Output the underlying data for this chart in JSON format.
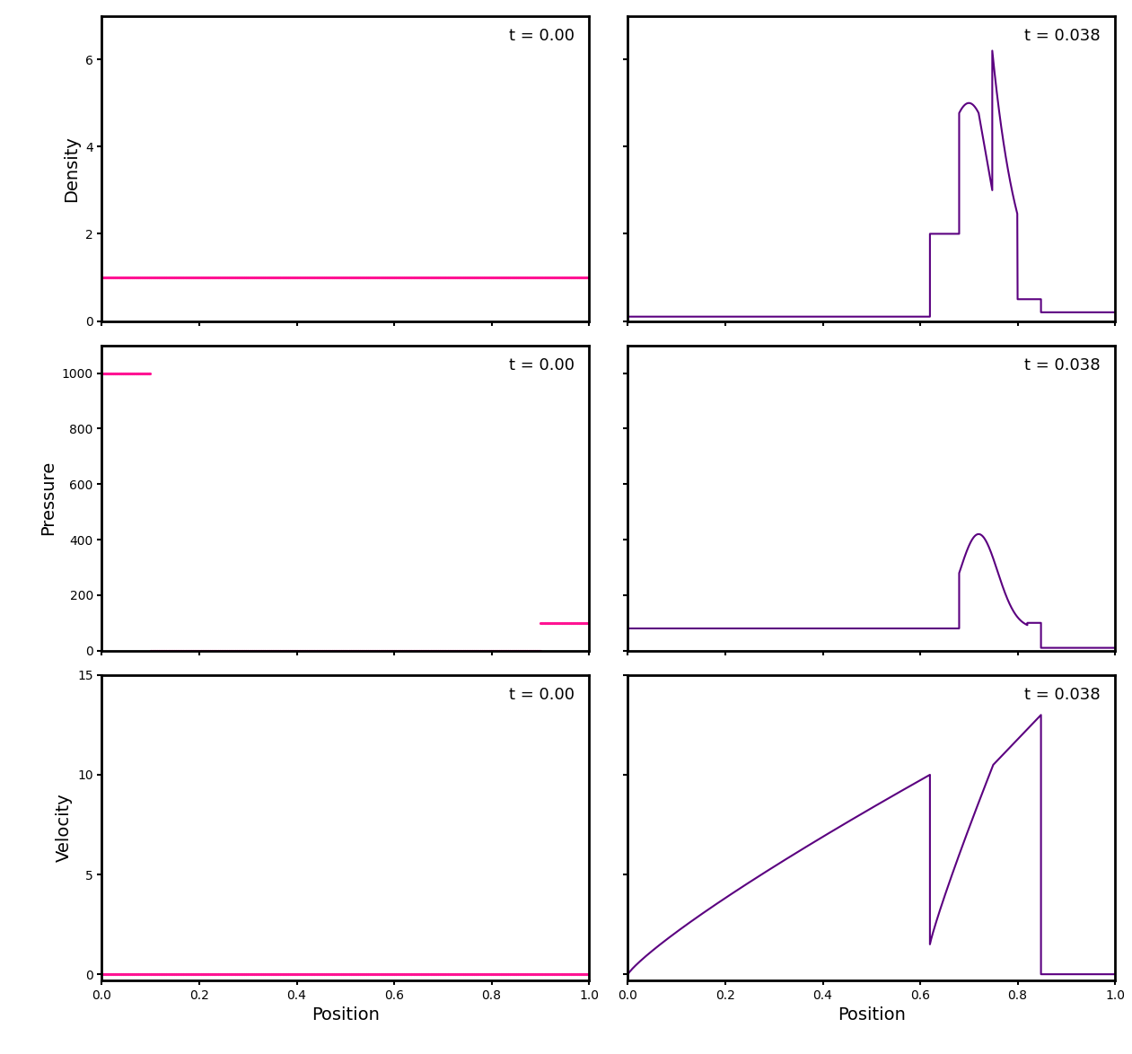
{
  "title_initial": "t = 0.00",
  "title_final": "t = 0.038",
  "ylabel_density": "Density",
  "ylabel_pressure": "Pressure",
  "ylabel_velocity": "Velocity",
  "xlabel": "Position",
  "dot_color": "#FF1493",
  "line_color": "#5B0080",
  "background_color": "white",
  "density_ylim": [
    0,
    7
  ],
  "pressure_ylim": [
    0,
    1100
  ],
  "velocity_ylim": [
    -0.3,
    15
  ],
  "xlim": [
    0.0,
    1.0
  ],
  "density_yticks": [
    0,
    2,
    4,
    6
  ],
  "pressure_yticks": [
    0,
    200,
    400,
    600,
    800,
    1000
  ],
  "velocity_yticks": [
    0,
    5,
    10,
    15
  ],
  "figsize": [
    12.61,
    11.74
  ],
  "dpi": 100
}
